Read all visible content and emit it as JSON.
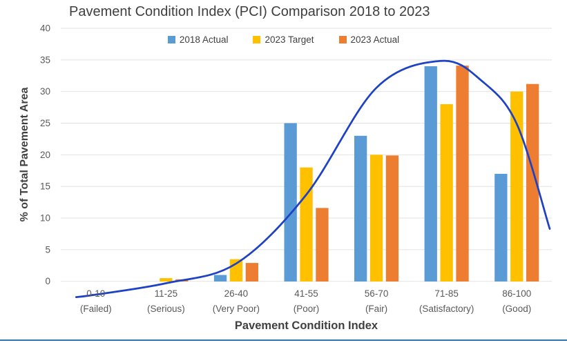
{
  "page": {
    "background": "#FFFFFF",
    "bottom_border_color": "#2E75B6"
  },
  "chart_data": {
    "type": "bar",
    "title": "Pavement Condition Index (PCI) Comparison 2018 to 2023",
    "xlabel": "Pavement Condition Index",
    "ylabel": "% of Total Pavement Area",
    "categories": [
      "0-10",
      "11-25",
      "26-40",
      "41-55",
      "56-70",
      "71-85",
      "86-100"
    ],
    "category_sublabels": [
      "(Failed)",
      "(Serious)",
      "(Very Poor)",
      "(Poor)",
      "(Fair)",
      "(Satisfactory)",
      "(Good)"
    ],
    "series": [
      {
        "name": "2018 Actual",
        "color": "#5B9BD5",
        "values": [
          0,
          0,
          1,
          25,
          23,
          34,
          17
        ]
      },
      {
        "name": "2023 Target",
        "color": "#FFC000",
        "values": [
          0,
          0.5,
          3.5,
          18,
          20,
          28,
          30
        ]
      },
      {
        "name": "2023 Actual",
        "color": "#ED7D31",
        "values": [
          0,
          0.3,
          2.9,
          11.6,
          19.9,
          34.1,
          31.2
        ]
      }
    ],
    "trend_curve": {
      "name": "distribution-curve",
      "color": "#1F42C4",
      "points_category_units": [
        [
          -0.28,
          -2.5
        ],
        [
          0,
          -2.1
        ],
        [
          1,
          -0.3
        ],
        [
          2,
          2.8
        ],
        [
          3,
          13.7
        ],
        [
          4,
          30.6
        ],
        [
          4.93,
          34.85
        ],
        [
          5.5,
          31.7
        ],
        [
          6,
          24.9
        ],
        [
          6.47,
          8.3
        ]
      ]
    },
    "ylim": [
      0,
      40
    ],
    "ytick_step": 5,
    "yticks": [
      "0",
      "5",
      "10",
      "15",
      "20",
      "25",
      "30",
      "35",
      "40"
    ],
    "grid": true,
    "legend_position": "top",
    "axis_text_color": "#595959",
    "gridline_color": "#E2E2E2"
  }
}
